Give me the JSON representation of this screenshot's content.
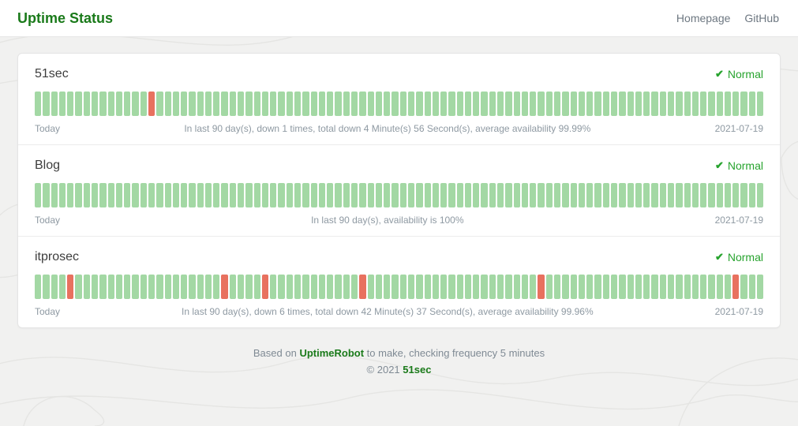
{
  "header": {
    "title": "Uptime Status",
    "nav": [
      {
        "label": "Homepage"
      },
      {
        "label": "GitHub"
      }
    ]
  },
  "icons": {
    "check": "✔"
  },
  "colors": {
    "brand_green": "#1a7a1a",
    "status_green": "#27a32e",
    "bar_up": "#a3d8a4",
    "bar_down": "#e8715f"
  },
  "monitors": [
    {
      "name": "51sec",
      "status": "Normal",
      "timeline_start": "Today",
      "summary": "In last 90 day(s), down 1 times, total down 4 Minute(s) 56 Second(s), average availability 99.99%",
      "timeline_end": "2021-07-19",
      "total_days": 90,
      "down_day_indices": [
        14
      ]
    },
    {
      "name": "Blog",
      "status": "Normal",
      "timeline_start": "Today",
      "summary": "In last 90 day(s), availability is 100%",
      "timeline_end": "2021-07-19",
      "total_days": 90,
      "down_day_indices": []
    },
    {
      "name": "itprosec",
      "status": "Normal",
      "timeline_start": "Today",
      "summary": "In last 90 day(s), down 6 times, total down 42 Minute(s) 37 Second(s), average availability 99.96%",
      "timeline_end": "2021-07-19",
      "total_days": 90,
      "down_day_indices": [
        4,
        23,
        28,
        40,
        62,
        86
      ]
    }
  ],
  "footer": {
    "based_prefix": "Based on ",
    "based_link": "UptimeRobot",
    "based_suffix": " to make, checking frequency 5 minutes",
    "copyright_prefix": "© 2021 ",
    "copyright_link": "51sec"
  }
}
